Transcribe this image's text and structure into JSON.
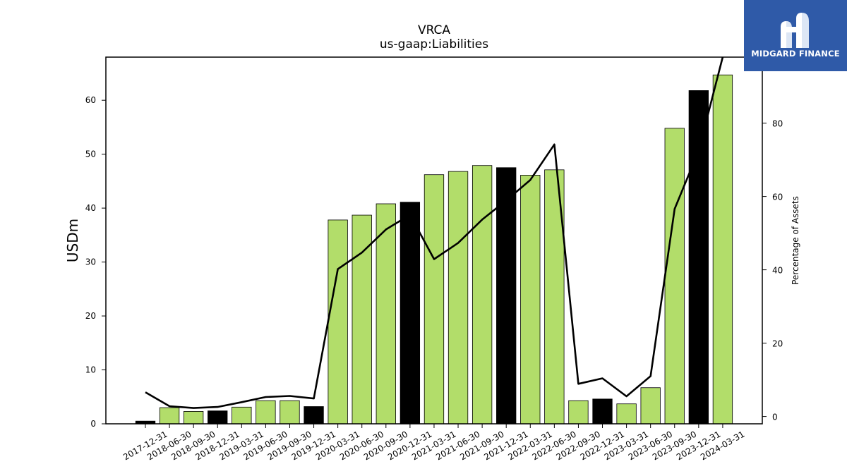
{
  "chart_data": {
    "type": "bar",
    "title": "VRCA",
    "subtitle": "us-gaap:Liabilities",
    "ylabel": "USDm",
    "y2label": "Percentage of Assets",
    "ylim": [
      0,
      68
    ],
    "y2lim": [
      -2,
      98
    ],
    "yticks": [
      0,
      10,
      20,
      30,
      40,
      50,
      60
    ],
    "y2ticks": [
      0,
      20,
      40,
      60,
      80
    ],
    "categories": [
      "2017-12-31",
      "2018-06-30",
      "2018-09-30",
      "2018-12-31",
      "2019-03-31",
      "2019-06-30",
      "2019-09-30",
      "2019-12-31",
      "2020-03-31",
      "2020-06-30",
      "2020-09-30",
      "2020-12-31",
      "2021-03-31",
      "2021-06-30",
      "2021-09-30",
      "2021-12-31",
      "2022-03-31",
      "2022-06-30",
      "2022-09-30",
      "2022-12-31",
      "2023-03-31",
      "2023-06-30",
      "2023-09-30",
      "2023-12-31",
      "2024-03-31"
    ],
    "series": [
      {
        "kind": "bar",
        "values": [
          0.5,
          3.0,
          2.3,
          2.4,
          3.1,
          4.3,
          4.3,
          3.2,
          37.8,
          38.7,
          40.8,
          41.1,
          46.2,
          46.8,
          47.9,
          47.5,
          46.1,
          47.1,
          4.3,
          4.6,
          3.7,
          6.7,
          54.8,
          61.8,
          64.7
        ],
        "year_end": [
          true,
          false,
          false,
          true,
          false,
          false,
          false,
          true,
          false,
          false,
          false,
          true,
          false,
          false,
          false,
          true,
          false,
          false,
          false,
          true,
          false,
          false,
          false,
          true,
          false
        ]
      },
      {
        "kind": "line",
        "axis": "right",
        "values": [
          6.6,
          2.8,
          2.3,
          2.6,
          3.9,
          5.3,
          5.6,
          4.9,
          40.2,
          44.7,
          51.0,
          55.0,
          42.9,
          47.3,
          53.7,
          58.9,
          64.5,
          74.2,
          8.9,
          10.4,
          5.5,
          11.0,
          56.6,
          72.5,
          98.0
        ]
      }
    ],
    "colors": {
      "bar_quarter": "#b2dd6a",
      "bar_year_end": "#000000",
      "line": "#000000",
      "bar_edge": "#000000"
    }
  },
  "brand": {
    "name": "MIDGARD FINANCE",
    "logo_icon": "midgard-logo-icon",
    "bg_color": "#2f5aa8"
  }
}
